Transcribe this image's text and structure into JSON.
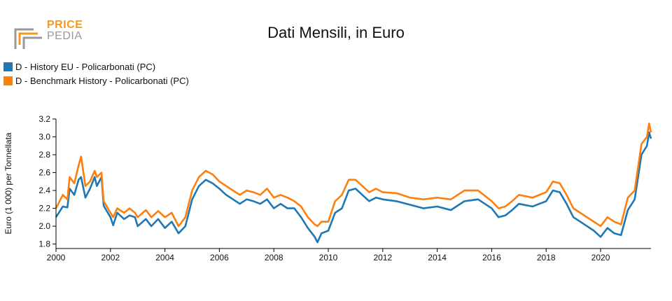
{
  "logo": {
    "line1": "PRICE",
    "line2": "PEDIA"
  },
  "colors": {
    "series1": "#1f77b4",
    "series2": "#ff7f0e",
    "logo_orange": "#f39a1e",
    "logo_grey": "#9a9a9a"
  },
  "chart_data": {
    "type": "line",
    "title": "Dati Mensili, in Euro",
    "ylabel": "Euro (1 000) per Tonnellata",
    "xlabel": "",
    "xlim": [
      2000.0,
      2021.85
    ],
    "ylim": [
      1.75,
      3.2
    ],
    "x_ticks": [
      "2000",
      "2002",
      "2004",
      "2006",
      "2008",
      "2010",
      "2012",
      "2014",
      "2016",
      "2018",
      "2020"
    ],
    "y_ticks": [
      "1.8",
      "2.0",
      "2.2",
      "2.4",
      "2.6",
      "2.8",
      "3.0",
      "3.2"
    ],
    "grid": false,
    "legend": "top-left",
    "series": [
      {
        "name": "D - History EU - Policarbonati (PC)",
        "color": "#1f77b4",
        "points": [
          [
            2000.0,
            2.1
          ],
          [
            2000.25,
            2.22
          ],
          [
            2000.42,
            2.21
          ],
          [
            2000.5,
            2.42
          ],
          [
            2000.67,
            2.35
          ],
          [
            2000.83,
            2.52
          ],
          [
            2000.92,
            2.55
          ],
          [
            2001.08,
            2.32
          ],
          [
            2001.25,
            2.42
          ],
          [
            2001.42,
            2.55
          ],
          [
            2001.5,
            2.45
          ],
          [
            2001.67,
            2.55
          ],
          [
            2001.75,
            2.23
          ],
          [
            2002.0,
            2.1
          ],
          [
            2002.1,
            2.01
          ],
          [
            2002.25,
            2.15
          ],
          [
            2002.5,
            2.08
          ],
          [
            2002.7,
            2.12
          ],
          [
            2002.9,
            2.1
          ],
          [
            2003.0,
            2.0
          ],
          [
            2003.3,
            2.08
          ],
          [
            2003.5,
            2.0
          ],
          [
            2003.75,
            2.08
          ],
          [
            2004.0,
            1.98
          ],
          [
            2004.25,
            2.05
          ],
          [
            2004.5,
            1.92
          ],
          [
            2004.75,
            2.0
          ],
          [
            2005.0,
            2.3
          ],
          [
            2005.25,
            2.45
          ],
          [
            2005.5,
            2.52
          ],
          [
            2005.75,
            2.48
          ],
          [
            2006.0,
            2.42
          ],
          [
            2006.25,
            2.35
          ],
          [
            2006.5,
            2.3
          ],
          [
            2006.75,
            2.25
          ],
          [
            2007.0,
            2.3
          ],
          [
            2007.25,
            2.28
          ],
          [
            2007.5,
            2.25
          ],
          [
            2007.75,
            2.3
          ],
          [
            2008.0,
            2.2
          ],
          [
            2008.25,
            2.25
          ],
          [
            2008.5,
            2.2
          ],
          [
            2008.75,
            2.2
          ],
          [
            2009.0,
            2.1
          ],
          [
            2009.25,
            1.98
          ],
          [
            2009.5,
            1.88
          ],
          [
            2009.6,
            1.82
          ],
          [
            2009.75,
            1.92
          ],
          [
            2010.0,
            1.95
          ],
          [
            2010.25,
            2.15
          ],
          [
            2010.5,
            2.2
          ],
          [
            2010.75,
            2.4
          ],
          [
            2011.0,
            2.42
          ],
          [
            2011.25,
            2.35
          ],
          [
            2011.5,
            2.28
          ],
          [
            2011.75,
            2.32
          ],
          [
            2012.0,
            2.3
          ],
          [
            2012.5,
            2.28
          ],
          [
            2013.0,
            2.24
          ],
          [
            2013.5,
            2.2
          ],
          [
            2014.0,
            2.22
          ],
          [
            2014.5,
            2.18
          ],
          [
            2015.0,
            2.28
          ],
          [
            2015.5,
            2.3
          ],
          [
            2016.0,
            2.2
          ],
          [
            2016.25,
            2.1
          ],
          [
            2016.5,
            2.12
          ],
          [
            2016.75,
            2.18
          ],
          [
            2017.0,
            2.25
          ],
          [
            2017.5,
            2.22
          ],
          [
            2018.0,
            2.28
          ],
          [
            2018.25,
            2.4
          ],
          [
            2018.5,
            2.38
          ],
          [
            2018.75,
            2.25
          ],
          [
            2019.0,
            2.1
          ],
          [
            2019.25,
            2.05
          ],
          [
            2019.5,
            2.0
          ],
          [
            2019.75,
            1.95
          ],
          [
            2020.0,
            1.88
          ],
          [
            2020.25,
            1.98
          ],
          [
            2020.5,
            1.92
          ],
          [
            2020.75,
            1.9
          ],
          [
            2021.0,
            2.18
          ],
          [
            2021.25,
            2.3
          ],
          [
            2021.5,
            2.8
          ],
          [
            2021.7,
            2.9
          ],
          [
            2021.78,
            3.05
          ],
          [
            2021.85,
            2.98
          ]
        ]
      },
      {
        "name": "D - Benchmark History - Policarbonati (PC)",
        "color": "#ff7f0e",
        "points": [
          [
            2000.0,
            2.2
          ],
          [
            2000.25,
            2.35
          ],
          [
            2000.42,
            2.3
          ],
          [
            2000.5,
            2.55
          ],
          [
            2000.67,
            2.48
          ],
          [
            2000.83,
            2.68
          ],
          [
            2000.92,
            2.78
          ],
          [
            2001.08,
            2.45
          ],
          [
            2001.25,
            2.5
          ],
          [
            2001.42,
            2.62
          ],
          [
            2001.5,
            2.55
          ],
          [
            2001.67,
            2.6
          ],
          [
            2001.75,
            2.28
          ],
          [
            2002.0,
            2.15
          ],
          [
            2002.1,
            2.1
          ],
          [
            2002.25,
            2.2
          ],
          [
            2002.5,
            2.15
          ],
          [
            2002.7,
            2.2
          ],
          [
            2002.9,
            2.15
          ],
          [
            2003.0,
            2.1
          ],
          [
            2003.3,
            2.18
          ],
          [
            2003.5,
            2.1
          ],
          [
            2003.75,
            2.17
          ],
          [
            2004.0,
            2.1
          ],
          [
            2004.25,
            2.15
          ],
          [
            2004.5,
            2.0
          ],
          [
            2004.75,
            2.1
          ],
          [
            2005.0,
            2.4
          ],
          [
            2005.25,
            2.55
          ],
          [
            2005.5,
            2.62
          ],
          [
            2005.75,
            2.58
          ],
          [
            2006.0,
            2.5
          ],
          [
            2006.25,
            2.45
          ],
          [
            2006.5,
            2.4
          ],
          [
            2006.75,
            2.35
          ],
          [
            2007.0,
            2.4
          ],
          [
            2007.25,
            2.38
          ],
          [
            2007.5,
            2.35
          ],
          [
            2007.75,
            2.42
          ],
          [
            2008.0,
            2.32
          ],
          [
            2008.25,
            2.35
          ],
          [
            2008.5,
            2.32
          ],
          [
            2008.75,
            2.28
          ],
          [
            2009.0,
            2.22
          ],
          [
            2009.25,
            2.1
          ],
          [
            2009.5,
            2.02
          ],
          [
            2009.6,
            2.0
          ],
          [
            2009.75,
            2.05
          ],
          [
            2010.0,
            2.05
          ],
          [
            2010.25,
            2.28
          ],
          [
            2010.5,
            2.35
          ],
          [
            2010.75,
            2.52
          ],
          [
            2011.0,
            2.52
          ],
          [
            2011.25,
            2.45
          ],
          [
            2011.5,
            2.38
          ],
          [
            2011.75,
            2.42
          ],
          [
            2012.0,
            2.38
          ],
          [
            2012.5,
            2.37
          ],
          [
            2013.0,
            2.32
          ],
          [
            2013.5,
            2.3
          ],
          [
            2014.0,
            2.32
          ],
          [
            2014.5,
            2.3
          ],
          [
            2015.0,
            2.4
          ],
          [
            2015.5,
            2.4
          ],
          [
            2016.0,
            2.28
          ],
          [
            2016.25,
            2.2
          ],
          [
            2016.5,
            2.22
          ],
          [
            2016.75,
            2.28
          ],
          [
            2017.0,
            2.35
          ],
          [
            2017.5,
            2.32
          ],
          [
            2018.0,
            2.38
          ],
          [
            2018.25,
            2.5
          ],
          [
            2018.5,
            2.48
          ],
          [
            2018.75,
            2.35
          ],
          [
            2019.0,
            2.2
          ],
          [
            2019.25,
            2.15
          ],
          [
            2019.5,
            2.1
          ],
          [
            2019.75,
            2.05
          ],
          [
            2020.0,
            2.0
          ],
          [
            2020.25,
            2.1
          ],
          [
            2020.5,
            2.05
          ],
          [
            2020.75,
            2.02
          ],
          [
            2021.0,
            2.32
          ],
          [
            2021.25,
            2.4
          ],
          [
            2021.5,
            2.92
          ],
          [
            2021.7,
            3.0
          ],
          [
            2021.78,
            3.15
          ],
          [
            2021.85,
            3.05
          ]
        ]
      }
    ]
  }
}
